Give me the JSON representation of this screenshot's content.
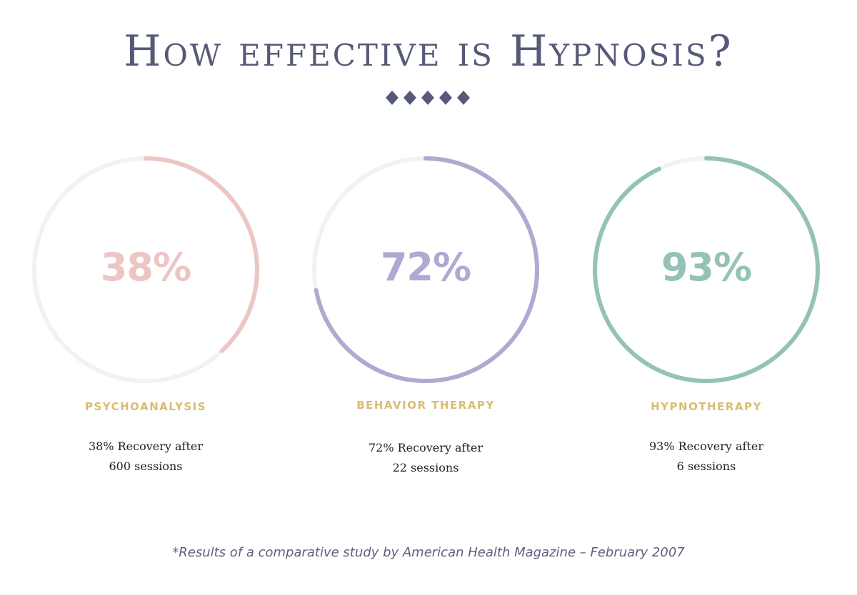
{
  "title": "How effective is Hypnosis?",
  "footnote": "*Results of a comparative study by American Health Magazine – February 2007",
  "colors": {
    "title": "#565a78",
    "ornament": "#565a78",
    "track": "#f2f2f2",
    "label": "#d8bc72",
    "psychoanalysis": "#ecc6c4",
    "behavior_therapy": "#b1a9d1",
    "hypnotherapy": "#94c2b6"
  },
  "gauges": [
    {
      "percent_label": "38%",
      "category": "PSYCHOANALYSIS",
      "description_line1": "38% Recovery after",
      "description_line2": "600 sessions",
      "color": "#ecc6c4"
    },
    {
      "percent_label": "72%",
      "category": "BEHAVIOR THERAPY",
      "description_line1": "72% Recovery after",
      "description_line2": "22 sessions",
      "color": "#b1a9d1"
    },
    {
      "percent_label": "93%",
      "category": "HYPNOTHERAPY",
      "description_line1": "93% Recovery after",
      "description_line2": "6 sessions",
      "color": "#94c2b6"
    }
  ],
  "chart_data": {
    "type": "pie",
    "title": "How effective is Hypnosis?",
    "categories": [
      "PSYCHOANALYSIS",
      "BEHAVIOR THERAPY",
      "HYPNOTHERAPY"
    ],
    "values": [
      38,
      72,
      93
    ],
    "units": "%",
    "ylim": [
      0,
      100
    ],
    "sessions": [
      600,
      22,
      6
    ]
  }
}
